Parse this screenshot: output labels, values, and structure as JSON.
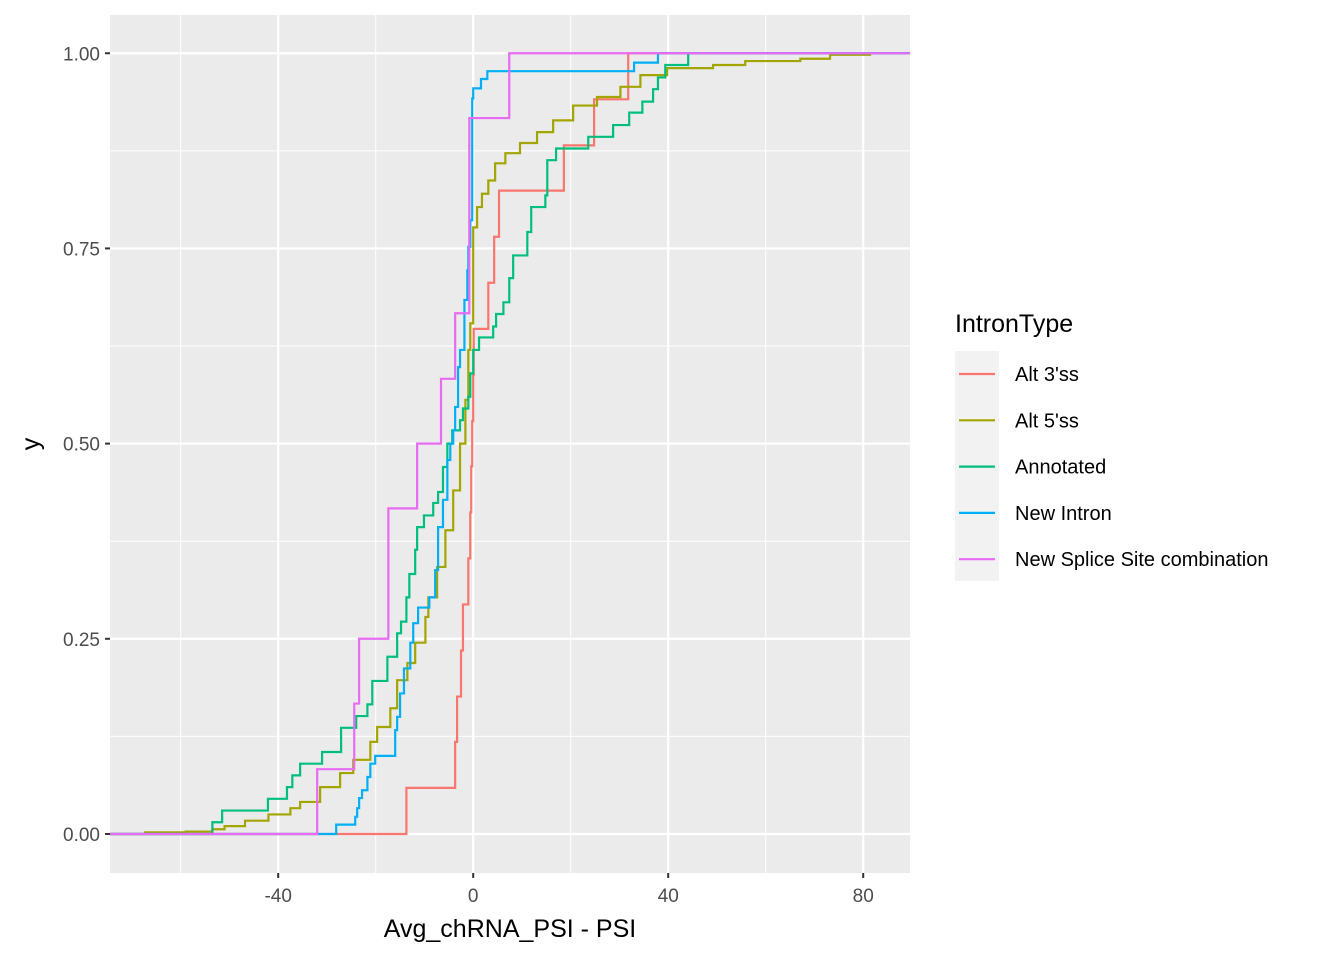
{
  "chart_data": {
    "type": "line",
    "subtype": "ecdf-step",
    "xlabel": "Avg_chRNA_PSI - PSI",
    "ylabel": "y",
    "xlim": [
      -74.5,
      89.6
    ],
    "ylim": [
      -0.05,
      1.049
    ],
    "x_ticks": [
      -40,
      0,
      40,
      80
    ],
    "x_tick_labels": [
      "-40",
      "0",
      "40",
      "80"
    ],
    "x_minor": [
      -60,
      -20,
      20,
      60
    ],
    "y_ticks": [
      0,
      0.25,
      0.5,
      0.75,
      1.0
    ],
    "y_tick_labels": [
      "0.00",
      "0.25",
      "0.50",
      "0.75",
      "1.00"
    ],
    "y_minor": [
      0.125,
      0.375,
      0.625,
      0.875
    ],
    "grid": true,
    "panel_background": "#EBEBEB",
    "legend": {
      "title": "IntronType",
      "placement": "right"
    },
    "series": [
      {
        "name": "Alt 3'ss",
        "color": "#F8766D",
        "x": [
          -13.7,
          -3.7,
          -3.3,
          -2.5,
          -2.1,
          -1.0,
          -0.6,
          -0.4,
          -0.2,
          0,
          0.1,
          3.1,
          4.3,
          5.3,
          18.6,
          24.8,
          31.8
        ],
        "y": [
          0.059,
          0.118,
          0.176,
          0.235,
          0.294,
          0.353,
          0.412,
          0.471,
          0.529,
          0.588,
          0.647,
          0.706,
          0.765,
          0.824,
          0.882,
          0.941,
          1.0
        ]
      },
      {
        "name": "Alt 5'ss",
        "color": "#A3A500",
        "x": [
          -67.3,
          -59,
          -53.5,
          -51,
          -46.8,
          -42,
          -37.5,
          -35.5,
          -31.4,
          -27.3,
          -24.6,
          -21.1,
          -19.7,
          -17.0,
          -15.6,
          -13.5,
          -11.9,
          -9.8,
          -9.2,
          -7.4,
          -5.7,
          -4.1,
          -2.7,
          -1.6,
          -1.0,
          -0.6,
          0,
          0.8,
          1.8,
          3.1,
          4.5,
          6.6,
          9.6,
          13.1,
          16.4,
          20.5,
          25.4,
          30.2,
          34.3,
          39.8,
          49.2,
          55.8,
          67.1,
          73.2,
          81.4
        ],
        "y": [
          0.002,
          0.003,
          0.006,
          0.01,
          0.017,
          0.025,
          0.033,
          0.041,
          0.06,
          0.078,
          0.095,
          0.118,
          0.137,
          0.161,
          0.197,
          0.219,
          0.245,
          0.278,
          0.303,
          0.342,
          0.389,
          0.44,
          0.5,
          0.556,
          0.62,
          0.654,
          0.777,
          0.803,
          0.82,
          0.837,
          0.859,
          0.872,
          0.885,
          0.899,
          0.914,
          0.933,
          0.944,
          0.957,
          0.972,
          0.981,
          0.985,
          0.99,
          0.993,
          0.998,
          1.0
        ]
      },
      {
        "name": "Annotated",
        "color": "#00BF7D",
        "x": [
          -53.5,
          -51.5,
          -42.1,
          -38.2,
          -37.1,
          -35.5,
          -31.0,
          -27.1,
          -24.0,
          -21.7,
          -20.7,
          -17.6,
          -15.6,
          -14.8,
          -13.7,
          -13.1,
          -11.9,
          -11.5,
          -10.1,
          -8.2,
          -7.2,
          -6.2,
          -5.3,
          -4.3,
          -2.7,
          -2.1,
          -1.0,
          -0.6,
          0,
          1.2,
          4.1,
          4.7,
          6.2,
          7.4,
          8.2,
          11.1,
          11.9,
          14.8,
          15.2,
          17.0,
          23.6,
          28.7,
          32.0,
          34.7,
          36.9,
          37.9,
          39.4,
          44.1
        ],
        "y": [
          0.015,
          0.03,
          0.045,
          0.06,
          0.075,
          0.09,
          0.105,
          0.136,
          0.151,
          0.166,
          0.196,
          0.227,
          0.257,
          0.272,
          0.303,
          0.333,
          0.364,
          0.393,
          0.408,
          0.424,
          0.438,
          0.47,
          0.5,
          0.517,
          0.53,
          0.545,
          0.56,
          0.59,
          0.62,
          0.636,
          0.65,
          0.666,
          0.681,
          0.712,
          0.741,
          0.771,
          0.803,
          0.818,
          0.863,
          0.878,
          0.893,
          0.908,
          0.924,
          0.938,
          0.954,
          0.969,
          0.985,
          1.0
        ]
      },
      {
        "name": "New Intron",
        "color": "#00B0F6",
        "x": [
          -28.1,
          -24.2,
          -23.8,
          -23.4,
          -22.8,
          -21.7,
          -21.1,
          -20.1,
          -16.0,
          -15.6,
          -15.0,
          -14.2,
          -12.9,
          -12.3,
          -11.3,
          -9.0,
          -7.8,
          -7.2,
          -6.2,
          -5.3,
          -4.7,
          -4.1,
          -3.7,
          -3.1,
          -2.7,
          -1.8,
          -1.2,
          -1.0,
          -0.6,
          -0.2,
          0,
          1.6,
          2.9,
          33.0,
          37.9
        ],
        "y": [
          0.012,
          0.022,
          0.033,
          0.046,
          0.056,
          0.073,
          0.09,
          0.1,
          0.133,
          0.15,
          0.18,
          0.212,
          0.245,
          0.27,
          0.29,
          0.303,
          0.338,
          0.393,
          0.428,
          0.479,
          0.5,
          0.517,
          0.547,
          0.598,
          0.62,
          0.684,
          0.722,
          0.752,
          0.786,
          0.942,
          0.955,
          0.967,
          0.977,
          0.988,
          1.0
        ]
      },
      {
        "name": "New Splice Site combination",
        "color": "#E76BF3",
        "x": [
          -32.0,
          -24.4,
          -23.4,
          -17.4,
          -11.5,
          -6.6,
          -3.7,
          -0.8,
          7.4
        ],
        "y": [
          0.083,
          0.167,
          0.25,
          0.417,
          0.5,
          0.583,
          0.667,
          0.917,
          1.0
        ]
      }
    ]
  }
}
